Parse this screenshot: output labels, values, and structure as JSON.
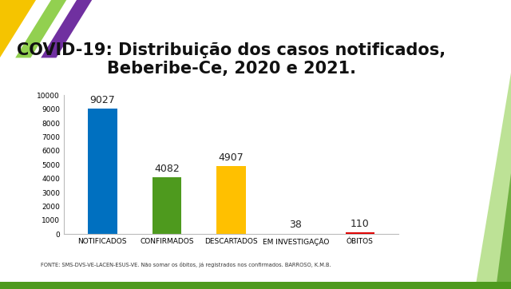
{
  "chart_data": {
    "type": "bar",
    "title": "COVID-19: Distribuição dos casos notificados, Beberibe-Ce, 2020 e 2021.",
    "note": "FONTE: SMS-DVS-VE-LACEN-ESUS-VE. Não somar os óbitos, já registrados nos confirmados. BARROSO, K.M.B.",
    "categories": [
      "NOTIFICADOS",
      "CONFIRMADOS",
      "DESCARTADOS",
      "EM INVESTIGAÇÃO",
      "ÓBITOS"
    ],
    "values": [
      9027,
      4082,
      4907,
      38,
      110
    ],
    "colors": [
      "#0070c0",
      "#4e9a1e",
      "#ffc000",
      "#7f7144",
      "#e00000"
    ],
    "ylim": [
      0,
      10000
    ],
    "yticks": [
      0,
      1000,
      2000,
      3000,
      4000,
      5000,
      6000,
      7000,
      8000,
      9000,
      10000
    ],
    "grid": false,
    "data_labels": true
  }
}
